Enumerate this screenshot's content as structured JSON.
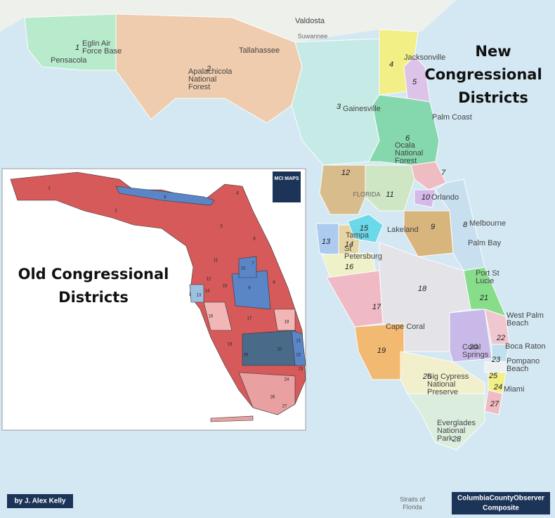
{
  "new_title": [
    "New",
    "Congressional",
    "Districts"
  ],
  "old_title": [
    "Old Congressional",
    "Districts"
  ],
  "credit": "by J. Alex Kelly",
  "source": [
    "ColumbiaCountyObserver",
    "Composite"
  ],
  "inset_logo": "MCI MAPS",
  "places": [
    [
      "Valdosta"
    ],
    [
      "Pensacola"
    ],
    [
      "Eglin Air",
      "Force Base"
    ],
    [
      "Tallahassee"
    ],
    [
      "Apalachicola",
      "National",
      "Forest"
    ],
    [
      "Suwannee"
    ],
    [
      "Jacksonville"
    ],
    [
      "Gainesville"
    ],
    [
      "Palm Coast"
    ],
    [
      "Ocala",
      "National",
      "Forest"
    ],
    [
      "FLORIDA"
    ],
    [
      "Orlando"
    ],
    [
      "Lakeland"
    ],
    [
      "Tampa"
    ],
    [
      "St",
      "Petersburg"
    ],
    [
      "Melbourne"
    ],
    [
      "Palm Bay"
    ],
    [
      "Port St",
      "Lucie"
    ],
    [
      "West Palm",
      "Beach"
    ],
    [
      "Cape Coral"
    ],
    [
      "Boca Raton"
    ],
    [
      "Coral",
      "Springs"
    ],
    [
      "Pompano",
      "Beach"
    ],
    [
      "Big Cypress",
      "National",
      "Preserve"
    ],
    [
      "Miami"
    ],
    [
      "Everglades",
      "National",
      "Park"
    ],
    [
      "Straits of",
      "Florida"
    ]
  ],
  "new_districts": [
    1,
    2,
    3,
    4,
    5,
    6,
    7,
    8,
    9,
    10,
    11,
    12,
    13,
    14,
    15,
    16,
    17,
    18,
    19,
    20,
    21,
    22,
    23,
    24,
    25,
    26,
    27,
    28
  ],
  "old_districts": [
    1,
    2,
    3,
    4,
    5,
    6,
    7,
    8,
    9,
    10,
    11,
    12,
    13,
    14,
    15,
    16,
    17,
    18,
    19,
    20,
    21,
    22,
    23,
    24,
    25,
    26,
    27
  ]
}
